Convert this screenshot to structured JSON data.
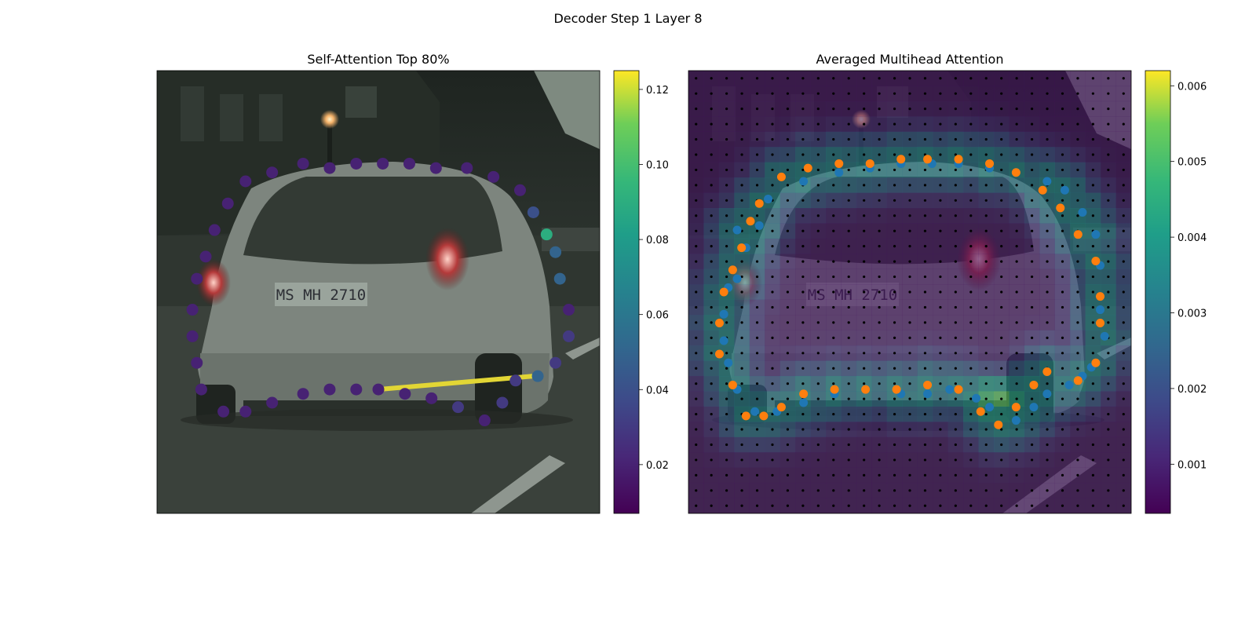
{
  "suptitle": "Decoder Step 1 Layer 8",
  "chart_data": [
    {
      "type": "scatter",
      "title": "Self-Attention Top 80%",
      "background": "dashcam photo: rear view of silver hatchback on city street",
      "colormap": "viridis",
      "colorbar": {
        "min": 0.007,
        "max": 0.125,
        "ticks": [
          "0.02",
          "0.04",
          "0.06",
          "0.08",
          "0.10",
          "0.12"
        ]
      },
      "query_point": [
        0.5,
        0.72
      ],
      "top_attention_target": [
        0.85,
        0.69
      ],
      "points": [
        [
          0.2,
          0.25,
          0.02
        ],
        [
          0.26,
          0.23,
          0.02
        ],
        [
          0.33,
          0.21,
          0.02
        ],
        [
          0.39,
          0.22,
          0.02
        ],
        [
          0.45,
          0.21,
          0.02
        ],
        [
          0.51,
          0.21,
          0.02
        ],
        [
          0.57,
          0.21,
          0.02
        ],
        [
          0.63,
          0.22,
          0.02
        ],
        [
          0.7,
          0.22,
          0.02
        ],
        [
          0.76,
          0.24,
          0.02
        ],
        [
          0.82,
          0.27,
          0.02
        ],
        [
          0.85,
          0.32,
          0.04
        ],
        [
          0.88,
          0.37,
          0.09
        ],
        [
          0.9,
          0.41,
          0.05
        ],
        [
          0.91,
          0.47,
          0.05
        ],
        [
          0.93,
          0.54,
          0.02
        ],
        [
          0.93,
          0.6,
          0.03
        ],
        [
          0.9,
          0.66,
          0.03
        ],
        [
          0.86,
          0.69,
          0.05
        ],
        [
          0.81,
          0.7,
          0.03
        ],
        [
          0.78,
          0.75,
          0.03
        ],
        [
          0.74,
          0.79,
          0.02
        ],
        [
          0.68,
          0.76,
          0.03
        ],
        [
          0.62,
          0.74,
          0.02
        ],
        [
          0.56,
          0.73,
          0.02
        ],
        [
          0.5,
          0.72,
          0.02
        ],
        [
          0.45,
          0.72,
          0.02
        ],
        [
          0.39,
          0.72,
          0.02
        ],
        [
          0.33,
          0.73,
          0.02
        ],
        [
          0.26,
          0.75,
          0.02
        ],
        [
          0.2,
          0.77,
          0.02
        ],
        [
          0.15,
          0.77,
          0.02
        ],
        [
          0.1,
          0.72,
          0.02
        ],
        [
          0.09,
          0.66,
          0.02
        ],
        [
          0.08,
          0.6,
          0.02
        ],
        [
          0.08,
          0.54,
          0.02
        ],
        [
          0.09,
          0.47,
          0.02
        ],
        [
          0.11,
          0.42,
          0.02
        ],
        [
          0.13,
          0.36,
          0.02
        ],
        [
          0.16,
          0.3,
          0.02
        ]
      ]
    },
    {
      "type": "heatmap",
      "title": "Averaged Multihead Attention",
      "colormap": "viridis",
      "colorbar": {
        "min": 0.00035,
        "max": 0.0062,
        "ticks": [
          "0.001",
          "0.002",
          "0.003",
          "0.004",
          "0.005",
          "0.006"
        ]
      },
      "grid": {
        "rows": 29,
        "cols": 29
      },
      "peak_cell": [
        0.7,
        0.73
      ],
      "series": [
        {
          "color": "#1f77b4",
          "points": [
            [
              0.11,
              0.36
            ],
            [
              0.13,
              0.4
            ],
            [
              0.16,
              0.35
            ],
            [
              0.18,
              0.29
            ],
            [
              0.26,
              0.25
            ],
            [
              0.34,
              0.23
            ],
            [
              0.41,
              0.22
            ],
            [
              0.48,
              0.21
            ],
            [
              0.55,
              0.21
            ],
            [
              0.61,
              0.21
            ],
            [
              0.68,
              0.22
            ],
            [
              0.74,
              0.23
            ],
            [
              0.81,
              0.25
            ],
            [
              0.85,
              0.27
            ],
            [
              0.89,
              0.32
            ],
            [
              0.92,
              0.37
            ],
            [
              0.93,
              0.44
            ],
            [
              0.93,
              0.54
            ],
            [
              0.94,
              0.6
            ],
            [
              0.91,
              0.67
            ],
            [
              0.89,
              0.69
            ],
            [
              0.86,
              0.71
            ],
            [
              0.81,
              0.73
            ],
            [
              0.78,
              0.76
            ],
            [
              0.74,
              0.79
            ],
            [
              0.68,
              0.76
            ],
            [
              0.65,
              0.74
            ],
            [
              0.59,
              0.72
            ],
            [
              0.54,
              0.73
            ],
            [
              0.48,
              0.73
            ],
            [
              0.4,
              0.72
            ],
            [
              0.33,
              0.73
            ],
            [
              0.26,
              0.75
            ],
            [
              0.2,
              0.77
            ],
            [
              0.15,
              0.77
            ],
            [
              0.11,
              0.72
            ],
            [
              0.09,
              0.66
            ],
            [
              0.08,
              0.61
            ],
            [
              0.08,
              0.55
            ],
            [
              0.09,
              0.49
            ],
            [
              0.11,
              0.47
            ]
          ]
        },
        {
          "color": "#ff7f0e",
          "points": [
            [
              0.14,
              0.34
            ],
            [
              0.16,
              0.3
            ],
            [
              0.21,
              0.24
            ],
            [
              0.27,
              0.22
            ],
            [
              0.34,
              0.21
            ],
            [
              0.41,
              0.21
            ],
            [
              0.48,
              0.2
            ],
            [
              0.54,
              0.2
            ],
            [
              0.61,
              0.2
            ],
            [
              0.68,
              0.21
            ],
            [
              0.74,
              0.23
            ],
            [
              0.8,
              0.27
            ],
            [
              0.84,
              0.31
            ],
            [
              0.88,
              0.37
            ],
            [
              0.92,
              0.43
            ],
            [
              0.93,
              0.51
            ],
            [
              0.93,
              0.57
            ],
            [
              0.92,
              0.66
            ],
            [
              0.88,
              0.7
            ],
            [
              0.81,
              0.68
            ],
            [
              0.78,
              0.71
            ],
            [
              0.74,
              0.76
            ],
            [
              0.7,
              0.8
            ],
            [
              0.66,
              0.77
            ],
            [
              0.61,
              0.72
            ],
            [
              0.54,
              0.71
            ],
            [
              0.47,
              0.72
            ],
            [
              0.4,
              0.72
            ],
            [
              0.33,
              0.72
            ],
            [
              0.26,
              0.73
            ],
            [
              0.21,
              0.76
            ],
            [
              0.17,
              0.78
            ],
            [
              0.13,
              0.78
            ],
            [
              0.1,
              0.71
            ],
            [
              0.07,
              0.64
            ],
            [
              0.07,
              0.57
            ],
            [
              0.08,
              0.5
            ],
            [
              0.1,
              0.45
            ],
            [
              0.12,
              0.4
            ]
          ]
        }
      ]
    }
  ]
}
